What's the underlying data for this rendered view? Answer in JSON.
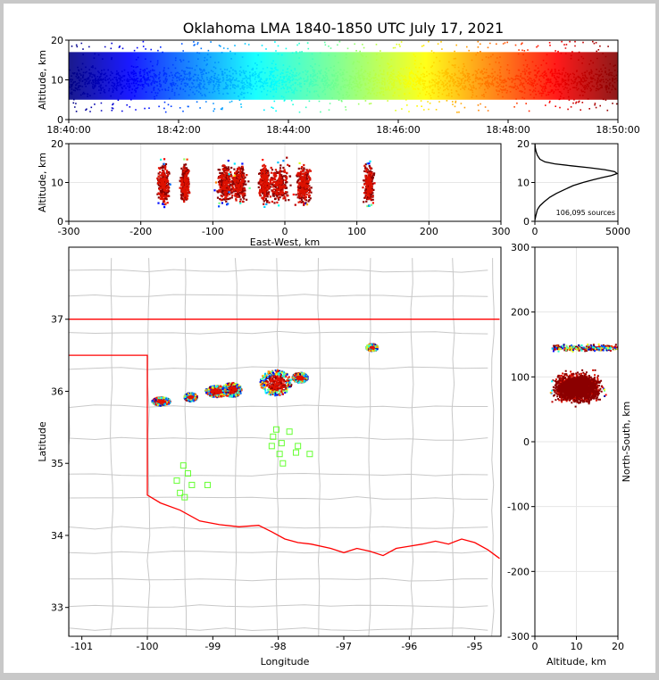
{
  "chart_data": [
    {
      "id": "time-altitude",
      "type": "scatter",
      "title": "Oklahoma LMA 1840-1850 UTC July 17, 2021",
      "xlabel": "",
      "ylabel": "Altitude, km",
      "x_ticks": [
        "18:40:00",
        "18:42:00",
        "18:44:00",
        "18:46:00",
        "18:48:00",
        "18:50:00"
      ],
      "xlim": [
        "18:40:00",
        "18:50:00"
      ],
      "ylim": [
        0,
        20
      ],
      "y_ticks": [
        0,
        10,
        20
      ],
      "color_scale": "jet colormap by time",
      "grid": false
    },
    {
      "id": "east-west-altitude",
      "type": "scatter",
      "xlabel": "East-West, km",
      "ylabel": "Altitude, km",
      "xlim": [
        -300,
        300
      ],
      "ylim": [
        0,
        20
      ],
      "x_ticks": [
        -300,
        -200,
        -100,
        0,
        100,
        200,
        300
      ],
      "y_ticks": [
        0,
        10,
        20
      ],
      "grid": true,
      "clusters": [
        {
          "x": -170,
          "width": 20
        },
        {
          "x": -140,
          "width": 16
        },
        {
          "x": -85,
          "width": 26
        },
        {
          "x": -65,
          "width": 30
        },
        {
          "x": -30,
          "width": 18
        },
        {
          "x": -10,
          "width": 40
        },
        {
          "x": 25,
          "width": 26
        },
        {
          "x": 115,
          "width": 18
        }
      ]
    },
    {
      "id": "altitude-histogram",
      "type": "line",
      "xlim": [
        0,
        5000
      ],
      "ylim": [
        0,
        20
      ],
      "x_ticks": [
        0,
        5000
      ],
      "y_ticks": [
        0,
        10,
        20
      ],
      "annotation": "106,095 sources",
      "grid": true,
      "points": [
        [
          0,
          0.3
        ],
        [
          60,
          1.5
        ],
        [
          150,
          3
        ],
        [
          300,
          4
        ],
        [
          550,
          5
        ],
        [
          900,
          6.2
        ],
        [
          1300,
          7.2
        ],
        [
          1800,
          8.2
        ],
        [
          2300,
          9.2
        ],
        [
          2900,
          10
        ],
        [
          3500,
          10.7
        ],
        [
          4100,
          11.3
        ],
        [
          4600,
          11.8
        ],
        [
          4950,
          12.3
        ],
        [
          4800,
          12.8
        ],
        [
          4200,
          13.3
        ],
        [
          3300,
          13.8
        ],
        [
          2200,
          14.3
        ],
        [
          1200,
          14.8
        ],
        [
          600,
          15.3
        ],
        [
          300,
          16
        ],
        [
          150,
          17
        ],
        [
          70,
          18
        ],
        [
          20,
          19
        ],
        [
          5,
          20
        ]
      ]
    },
    {
      "id": "plan-view",
      "type": "scatter",
      "xlabel": "Longitude",
      "ylabel": "Latitude",
      "xlim": [
        -101.2,
        -94.6
      ],
      "ylim": [
        32.6,
        38
      ],
      "x_ticks": [
        -101,
        -100,
        -99,
        -98,
        -97,
        -96,
        -95
      ],
      "y_ticks": [
        33,
        34,
        35,
        36,
        37
      ],
      "grid": false,
      "storms": [
        {
          "lon": -99.8,
          "lat": 35.87,
          "rx": 0.14,
          "ry": 0.06
        },
        {
          "lon": -99.35,
          "lat": 35.93,
          "rx": 0.1,
          "ry": 0.06
        },
        {
          "lon": -98.95,
          "lat": 36.01,
          "rx": 0.18,
          "ry": 0.08
        },
        {
          "lon": -98.72,
          "lat": 36.03,
          "rx": 0.15,
          "ry": 0.1
        },
        {
          "lon": -98.05,
          "lat": 36.13,
          "rx": 0.24,
          "ry": 0.18
        },
        {
          "lon": -97.68,
          "lat": 36.2,
          "rx": 0.12,
          "ry": 0.07
        },
        {
          "lon": -96.58,
          "lat": 36.62,
          "rx": 0.09,
          "ry": 0.05
        }
      ],
      "stations": [
        [
          -98.03,
          35.47
        ],
        [
          -97.83,
          35.44
        ],
        [
          -98.08,
          35.37
        ],
        [
          -97.95,
          35.28
        ],
        [
          -98.1,
          35.24
        ],
        [
          -97.7,
          35.24
        ],
        [
          -97.98,
          35.13
        ],
        [
          -97.73,
          35.15
        ],
        [
          -97.52,
          35.13
        ],
        [
          -97.93,
          35.0
        ],
        [
          -99.45,
          34.97
        ],
        [
          -99.38,
          34.86
        ],
        [
          -99.55,
          34.76
        ],
        [
          -99.32,
          34.7
        ],
        [
          -99.08,
          34.7
        ],
        [
          -99.5,
          34.59
        ],
        [
          -99.43,
          34.53
        ]
      ],
      "station_color": "#66ff33",
      "border_color": "#ff0000"
    },
    {
      "id": "altitude-north-south",
      "type": "scatter",
      "xlabel": "Altitude, km",
      "ylabel": "North-South, km",
      "xlim": [
        0,
        20
      ],
      "ylim": [
        -300,
        300
      ],
      "x_ticks": [
        0,
        10,
        20
      ],
      "y_ticks": [
        -300,
        -200,
        -100,
        0,
        100,
        200,
        300
      ],
      "grid": true
    }
  ]
}
